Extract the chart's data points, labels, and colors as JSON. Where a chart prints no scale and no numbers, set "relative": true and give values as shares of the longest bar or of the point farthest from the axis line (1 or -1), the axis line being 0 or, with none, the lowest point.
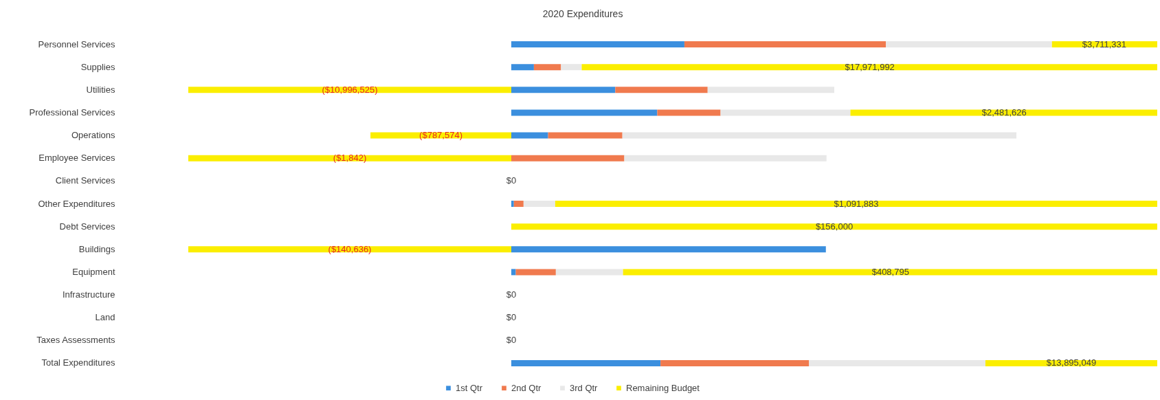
{
  "chart_data": {
    "type": "bar",
    "title": "2020 Expenditures",
    "orientation": "horizontal",
    "stacked": true,
    "relative": true,
    "legend": "bottom",
    "categories": [
      "Personnel Services",
      "Supplies",
      "Utilities",
      "Professional Services",
      "Operations",
      "Employee Services",
      "Client Services",
      "Other Expenditures",
      "Debt Services",
      "Buildings",
      "Equipment",
      "Infrastructure",
      "Land",
      "Taxes Assessments",
      "Total Expenditures"
    ],
    "series": [
      {
        "name": "1st Qtr",
        "color": "#3b8fde",
        "values": [
          0.268,
          0.035,
          0.161,
          0.226,
          0.057,
          0,
          0,
          0.004,
          0,
          0.487,
          0.007,
          0,
          0,
          0,
          0.231
        ]
      },
      {
        "name": "2nd Qtr",
        "color": "#f07a4e",
        "values": [
          0.312,
          0.042,
          0.143,
          0.098,
          0.115,
          0.175,
          0,
          0.015,
          0,
          0,
          0.062,
          0,
          0,
          0,
          0.23
        ]
      },
      {
        "name": "3rd Qtr",
        "color": "#e8e8e8",
        "values": [
          0.257,
          0.032,
          0.196,
          0.201,
          0.61,
          0.313,
          0,
          0.049,
          0,
          0,
          0.104,
          0,
          0,
          0,
          0.273
        ]
      },
      {
        "name": "Remaining Budget",
        "color": "#fbee00",
        "values": [
          0.163,
          0.891,
          -0.5,
          0.475,
          -0.218,
          -0.5,
          0,
          0.932,
          1,
          -0.5,
          0.827,
          0,
          0,
          0,
          0.266
        ]
      }
    ],
    "annotations": [
      {
        "text": "$3,711,331",
        "x": 0.918,
        "y": "Personnel Services"
      },
      {
        "text": "$17,971,992",
        "x": 0.555,
        "y": "Supplies"
      },
      {
        "text": "($10,996,525)",
        "x": -0.25,
        "y": "Utilities"
      },
      {
        "text": "$2,481,626",
        "x": 0.763,
        "y": "Professional Services"
      },
      {
        "text": "($787,574)",
        "x": -0.109,
        "y": "Operations"
      },
      {
        "text": "($1,842)",
        "x": -0.25,
        "y": "Employee Services"
      },
      {
        "text": "$0",
        "x": 0,
        "y": "Client Services"
      },
      {
        "text": "$1,091,883",
        "x": 0.534,
        "y": "Other Expenditures"
      },
      {
        "text": "$156,000",
        "x": 0.5,
        "y": "Debt Services"
      },
      {
        "text": "($140,636)",
        "x": -0.25,
        "y": "Buildings"
      },
      {
        "text": "$408,795",
        "x": 0.587,
        "y": "Equipment"
      },
      {
        "text": "$0",
        "x": 0,
        "y": "Infrastructure"
      },
      {
        "text": "$0",
        "x": 0,
        "y": "Land"
      },
      {
        "text": "$0",
        "x": 0,
        "y": "Taxes Assessments"
      },
      {
        "text": "$13,895,049",
        "x": 0.867,
        "y": "Total Expenditures"
      }
    ]
  }
}
